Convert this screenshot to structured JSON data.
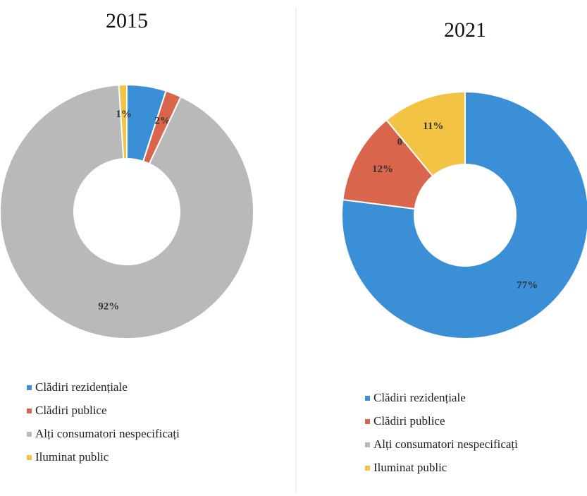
{
  "chart_data": [
    {
      "type": "donut",
      "title": "2015",
      "categories": [
        "Clădiri rezidențiale",
        "Clădiri publice",
        "Alți consumatori nespecificați",
        "Iluminat public"
      ],
      "values": [
        5,
        2,
        92,
        1
      ],
      "value_labels": [
        null,
        "2%",
        "92%",
        "1%"
      ],
      "colors": [
        "#3b8fd6",
        "#d9654c",
        "#b9b9b9",
        "#f3c344"
      ]
    },
    {
      "type": "donut",
      "title": "2021",
      "categories": [
        "Clădiri rezidențiale",
        "Clădiri publice",
        "Alți consumatori nespecificați",
        "Iluminat public"
      ],
      "values": [
        77,
        12,
        0,
        11
      ],
      "value_labels": [
        "77%",
        "12%",
        "0%",
        "11%"
      ],
      "colors": [
        "#3b8fd6",
        "#d9654c",
        "#b9b9b9",
        "#f3c344"
      ]
    }
  ]
}
